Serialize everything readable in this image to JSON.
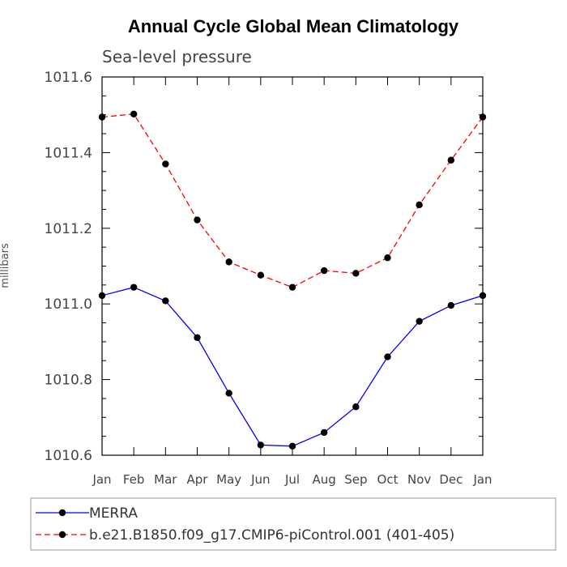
{
  "chart_data": {
    "type": "line",
    "title": "Annual Cycle Global Mean Climatology",
    "subtitle": "Sea-level pressure",
    "ylabel": "millibars",
    "xlabel": "",
    "ylim": [
      1010.6,
      1011.6
    ],
    "yticks": [
      "1010.6",
      "1010.8",
      "1011.0",
      "1011.2",
      "1011.4",
      "1011.6"
    ],
    "categories": [
      "Jan",
      "Feb",
      "Mar",
      "Apr",
      "May",
      "Jun",
      "Jul",
      "Aug",
      "Sep",
      "Oct",
      "Nov",
      "Dec",
      "Jan"
    ],
    "grid": false,
    "legend_position": "bottom",
    "series": [
      {
        "name": "MERRA",
        "color": "#0000ff",
        "dash": "solid",
        "values": [
          1011.022,
          1011.044,
          1011.008,
          1010.911,
          1010.764,
          1010.627,
          1010.624,
          1010.66,
          1010.728,
          1010.86,
          1010.954,
          1010.996,
          1011.022
        ]
      },
      {
        "name": "b.e21.B1850.f09_g17.CMIP6-piControl.001 (401-405)",
        "color": "#ff0000",
        "dash": "dashed",
        "values": [
          1011.494,
          1011.502,
          1011.37,
          1011.222,
          1011.111,
          1011.076,
          1011.044,
          1011.088,
          1011.081,
          1011.122,
          1011.262,
          1011.38,
          1011.494
        ]
      }
    ]
  }
}
